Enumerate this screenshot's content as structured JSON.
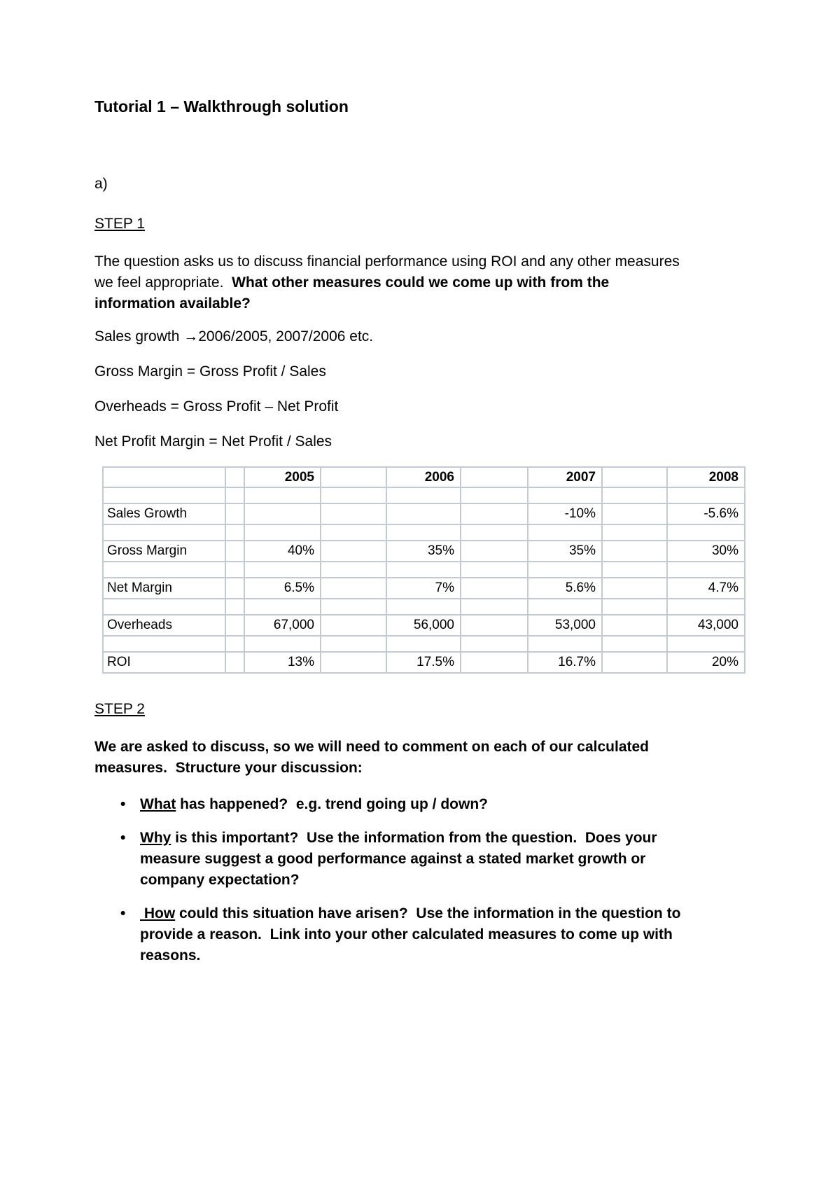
{
  "doc": {
    "title": "Tutorial 1 – Walkthrough solution",
    "section_label": "a)"
  },
  "step1": {
    "heading": "STEP 1",
    "intro_normal": "The question asks us to discuss financial performance using ROI and any other measures we feel appropriate.  ",
    "intro_bold": "What other measures could we come up with from the information available?",
    "formulas": [
      "Sales growth →2006/2005, 2007/2006 etc.",
      "Gross Margin = Gross Profit / Sales",
      "Overheads = Gross Profit – Net Profit",
      "Net Profit Margin = Net Profit / Sales"
    ]
  },
  "table": {
    "columns": [
      "",
      "2005",
      "2006",
      "2007",
      "2008"
    ],
    "rows": [
      {
        "label": "Sales Growth",
        "values": [
          "",
          "",
          "-10%",
          "-5.6%"
        ]
      },
      {
        "label": "Gross Margin",
        "values": [
          "40%",
          "35%",
          "35%",
          "30%"
        ]
      },
      {
        "label": "Net Margin",
        "values": [
          "6.5%",
          "7%",
          "5.6%",
          "4.7%"
        ]
      },
      {
        "label": "Overheads",
        "values": [
          "67,000",
          "56,000",
          "53,000",
          "43,000"
        ]
      },
      {
        "label": "ROI",
        "values": [
          "13%",
          "17.5%",
          "16.7%",
          "20%"
        ]
      }
    ]
  },
  "step2": {
    "heading": "STEP 2",
    "intro_bold": "We are asked to discuss, so we will need to comment on each of our calculated measures.  Structure your discussion:",
    "bullets": [
      {
        "keyword": "What",
        "text": " has happened?  e.g. trend going up / down?"
      },
      {
        "keyword": "Why",
        "text": " is this important?  Use the information from the question.  Does your measure suggest a good performance against a stated market growth or company expectation?"
      },
      {
        "keyword": " How",
        "text": " could this situation have arisen?  Use the information in the question to provide a reason.  Link into your other calculated measures to come up with reasons."
      }
    ]
  }
}
